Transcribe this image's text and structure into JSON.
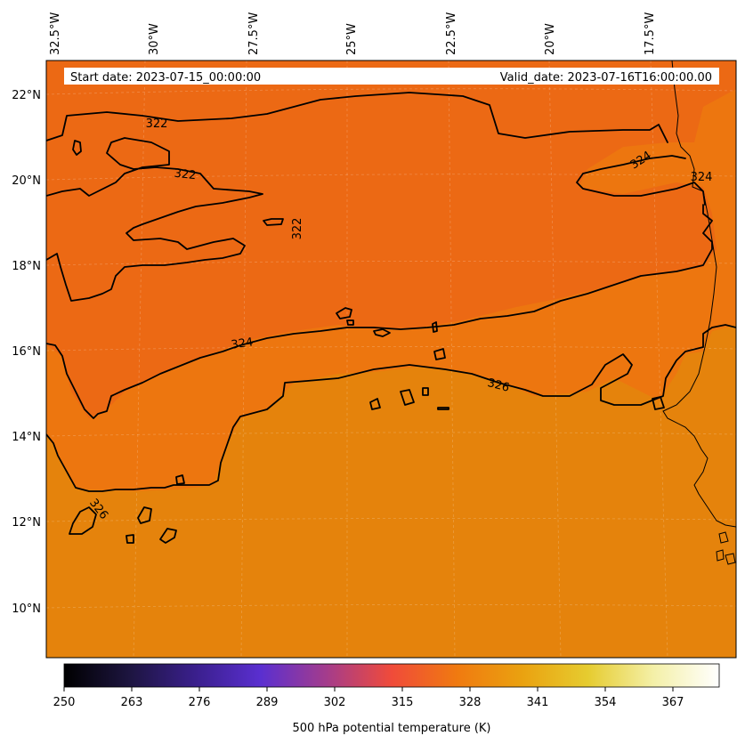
{
  "header": {
    "start_date": "Start date: 2023-07-15_00:00:00",
    "valid_date": "Valid_date: 2023-07-16T16:00:00.00"
  },
  "longitude_labels": [
    "32.5°W",
    "30°W",
    "27.5°W",
    "25°W",
    "22.5°W",
    "20°W",
    "17.5°W"
  ],
  "latitude_labels": [
    "22°N",
    "20°N",
    "18°N",
    "16°N",
    "14°N",
    "12°N",
    "10°N"
  ],
  "contours": {
    "levels": [
      322,
      324,
      326
    ],
    "labels": [
      "322",
      "322",
      "322",
      "324",
      "324",
      "324",
      "326",
      "326"
    ]
  },
  "colorbar": {
    "title": "500 hPa potential temperature (K)",
    "min": 250,
    "max": 376,
    "ticks": [
      "250",
      "263",
      "276",
      "289",
      "302",
      "315",
      "328",
      "341",
      "354",
      "367"
    ],
    "colors": [
      "#000000",
      "#1d1540",
      "#3a1f8c",
      "#5a2fd0",
      "#a43c8c",
      "#f04b3a",
      "#f07a10",
      "#eaa210",
      "#e6cc30",
      "#f4f0a8",
      "#ffffff"
    ]
  },
  "field_colors": {
    "cool": "#ec6914",
    "mid": "#ed760f",
    "warm": "#e5830c"
  }
}
